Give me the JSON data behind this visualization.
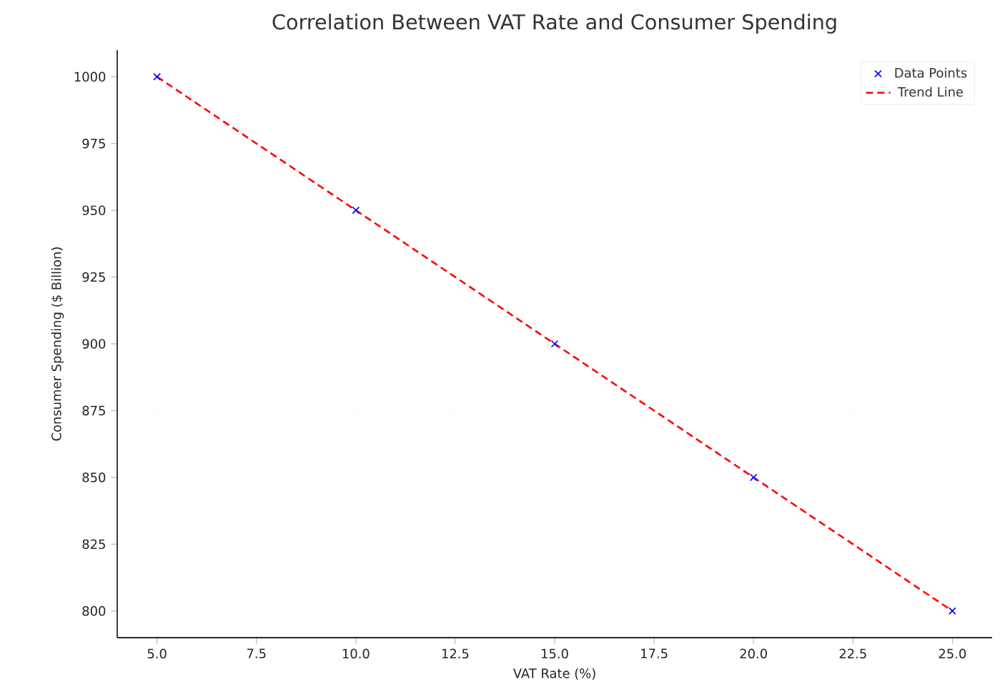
{
  "chart_data": {
    "type": "scatter",
    "title": "Correlation Between VAT Rate and Consumer Spending",
    "xlabel": "VAT Rate (%)",
    "ylabel": "Consumer Spending ($ Billion)",
    "x": [
      5,
      10,
      15,
      20,
      25
    ],
    "series": [
      {
        "name": "Data Points",
        "color": "#0000ff",
        "marker": "cross",
        "values": [
          1000,
          950,
          900,
          850,
          800
        ]
      },
      {
        "name": "Trend Line",
        "type": "line",
        "color": "#ff0000",
        "line_style": "dashed",
        "marker": "none",
        "values": [
          1000,
          950,
          900,
          850,
          800
        ]
      }
    ],
    "xlim": [
      4,
      26
    ],
    "ylim": [
      790,
      1010
    ],
    "xticks": [
      {
        "value": 5,
        "label": "5.0"
      },
      {
        "value": 7.5,
        "label": "7.5"
      },
      {
        "value": 10,
        "label": "10.0"
      },
      {
        "value": 12.5,
        "label": "12.5"
      },
      {
        "value": 15,
        "label": "15.0"
      },
      {
        "value": 17.5,
        "label": "17.5"
      },
      {
        "value": 20,
        "label": "20.0"
      },
      {
        "value": 22.5,
        "label": "22.5"
      },
      {
        "value": 25,
        "label": "25.0"
      }
    ],
    "yticks": [
      800,
      825,
      850,
      875,
      900,
      925,
      950,
      975,
      1000
    ],
    "grid": true,
    "legend": "top right"
  }
}
